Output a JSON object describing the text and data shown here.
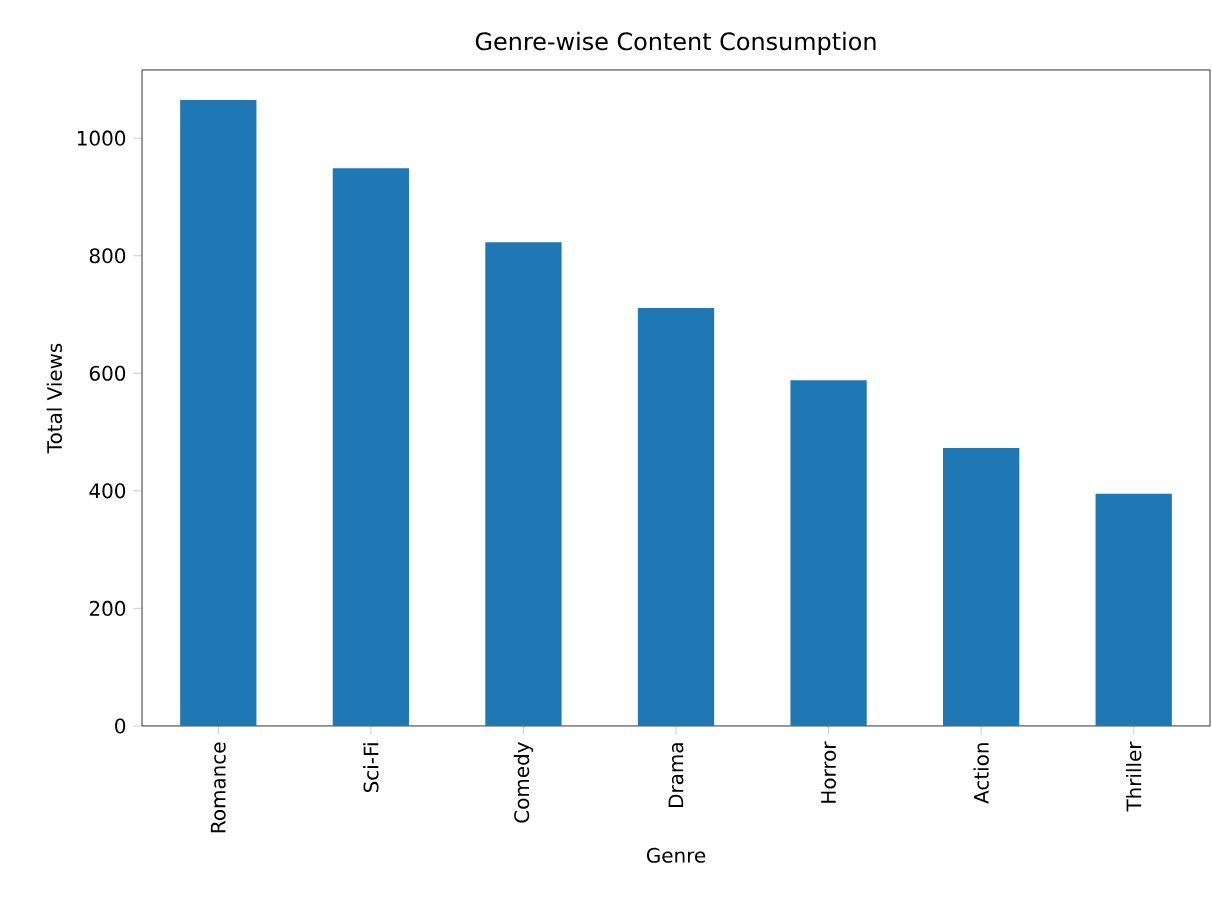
{
  "chart_data": {
    "type": "bar",
    "title": "Genre-wise Content Consumption",
    "xlabel": "Genre",
    "ylabel": "Total Views",
    "categories": [
      "Romance",
      "Sci-Fi",
      "Comedy",
      "Drama",
      "Horror",
      "Action",
      "Thriller"
    ],
    "values": [
      1065,
      949,
      823,
      711,
      588,
      473,
      395
    ],
    "color": "#1f77b4",
    "ylim": [
      0,
      1116
    ],
    "yticks": [
      0,
      200,
      400,
      600,
      800,
      1000
    ]
  }
}
